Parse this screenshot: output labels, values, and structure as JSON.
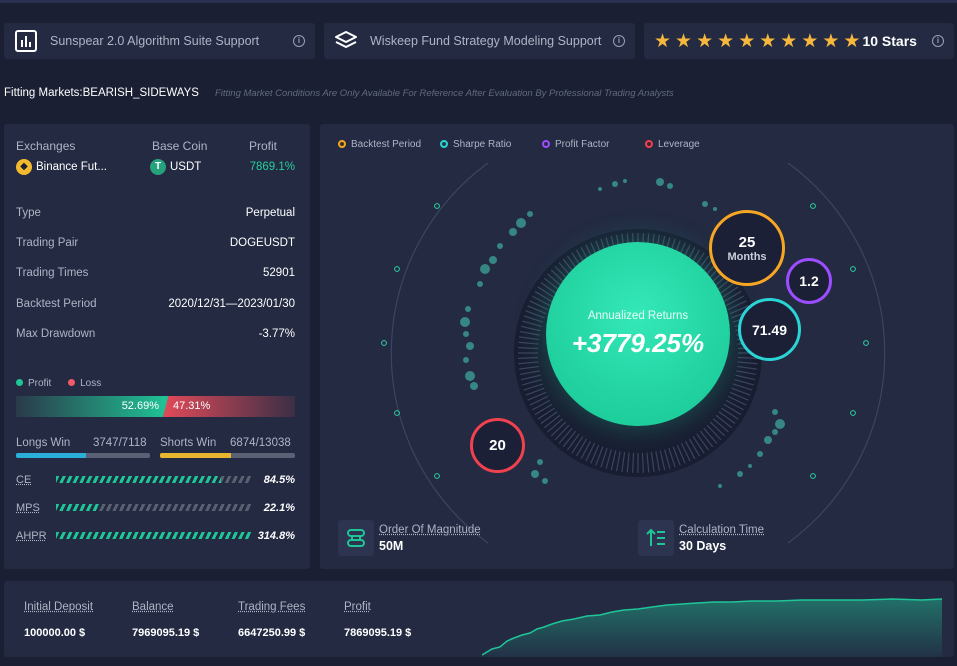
{
  "top_cards": [
    {
      "label": "Sunspear 2.0 Algorithm Suite Support",
      "icon": "bar-chart-icon"
    },
    {
      "label": "Wiskeep Fund Strategy Modeling Support",
      "icon": "layers-icon"
    }
  ],
  "rating": {
    "stars": 10,
    "label": "10 Stars"
  },
  "fitting": {
    "label": "Fitting Markets:BEARISH_SIDEWAYS",
    "note": "Fitting Market Conditions Are Only Available For Reference After Evaluation By Professional Trading Analysts"
  },
  "summary": {
    "headers": {
      "exchanges": "Exchanges",
      "base_coin": "Base Coin",
      "profit": "Profit"
    },
    "exchange": "Binance Fut...",
    "coin": "USDT",
    "profit": "7869.1%"
  },
  "details": [
    {
      "label": "Type",
      "value": "Perpetual"
    },
    {
      "label": "Trading Pair",
      "value": "DOGEUSDT"
    },
    {
      "label": "Trading Times",
      "value": "52901"
    },
    {
      "label": "Backtest Period",
      "value": "2020/12/31—2023/01/30"
    },
    {
      "label": "Max Drawdown",
      "value": "-3.77%"
    }
  ],
  "profit_loss": {
    "profit_label": "Profit",
    "loss_label": "Loss",
    "profit_pct": "52.69%",
    "loss_pct": "47.31%",
    "profit_fraction": 0.5269
  },
  "wins": {
    "longs_label": "Longs Win",
    "longs_value": "3747/7118",
    "longs_fraction": 0.526,
    "shorts_label": "Shorts Win",
    "shorts_value": "6874/13038",
    "shorts_fraction": 0.527
  },
  "metrics": [
    {
      "label": "CE",
      "value": "84.5%",
      "fraction": 0.845
    },
    {
      "label": "MPS",
      "value": "22.1%",
      "fraction": 0.221
    },
    {
      "label": "AHPR",
      "value": "314.8%",
      "fraction": 1.0
    }
  ],
  "center": {
    "legend": [
      {
        "label": "Backtest Period",
        "color": "#f6a623"
      },
      {
        "label": "Sharpe Ratio",
        "color": "#2ad4d4"
      },
      {
        "label": "Profit Factor",
        "color": "#9b4dff"
      },
      {
        "label": "Leverage",
        "color": "#f0414e"
      }
    ],
    "returns_label": "Annualized Returns",
    "returns_value": "+3779.25%",
    "bubbles": {
      "backtest_value": "25",
      "backtest_unit": "Months",
      "profit_factor": "1.2",
      "sharpe": "71.49",
      "leverage": "20"
    },
    "magnitude_label": "Order Of Magnitude",
    "magnitude_value": "50M",
    "calc_label": "Calculation Time",
    "calc_value": "30 Days"
  },
  "bottom": {
    "items": [
      {
        "label": "Initial Deposit",
        "value": "100000.00 $"
      },
      {
        "label": "Balance",
        "value": "7969095.19 $"
      },
      {
        "label": "Trading Fees",
        "value": "6647250.99 $"
      },
      {
        "label": "Profit",
        "value": "7869095.19 $"
      }
    ]
  },
  "colors": {
    "accent": "#1fc597",
    "loss": "#f05a69",
    "panel": "#232a42",
    "background": "#1a1f33"
  }
}
